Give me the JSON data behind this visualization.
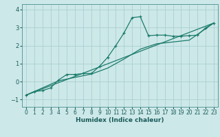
{
  "title": "",
  "xlabel": "Humidex (Indice chaleur)",
  "xlim": [
    -0.5,
    23.5
  ],
  "ylim": [
    -1.4,
    4.3
  ],
  "xticks": [
    0,
    1,
    2,
    3,
    4,
    5,
    6,
    7,
    8,
    9,
    10,
    11,
    12,
    13,
    14,
    15,
    16,
    17,
    18,
    19,
    20,
    21,
    22,
    23
  ],
  "yticks": [
    -1,
    0,
    1,
    2,
    3,
    4
  ],
  "bg_color": "#cde8e8",
  "line_color": "#1a7a6a",
  "grid_color": "#aacfcf",
  "line1_x": [
    0,
    1,
    2,
    3,
    4,
    5,
    6,
    7,
    8,
    9,
    10,
    11,
    12,
    13,
    14,
    15,
    16,
    17,
    18,
    19,
    20,
    21,
    22,
    23
  ],
  "line1_y": [
    -0.75,
    -0.55,
    -0.5,
    -0.35,
    0.1,
    0.4,
    0.4,
    0.45,
    0.45,
    0.85,
    1.35,
    2.0,
    2.7,
    3.55,
    3.6,
    2.55,
    2.58,
    2.58,
    2.52,
    2.52,
    2.55,
    2.58,
    2.98,
    3.25
  ],
  "line2_x": [
    0,
    23
  ],
  "line2_y": [
    -0.75,
    3.25
  ],
  "line3_x": [
    0,
    4,
    8,
    10,
    12,
    14,
    16,
    18,
    20,
    23
  ],
  "line3_y": [
    -0.75,
    0.05,
    0.42,
    0.75,
    1.25,
    1.8,
    2.1,
    2.2,
    2.3,
    3.25
  ],
  "xlabel_fontsize": 6.5,
  "xlabel_fontweight": "bold",
  "xlabel_color": "#1a5a5a",
  "tick_fontsize": 5.5,
  "tick_color": "#1a5a5a"
}
